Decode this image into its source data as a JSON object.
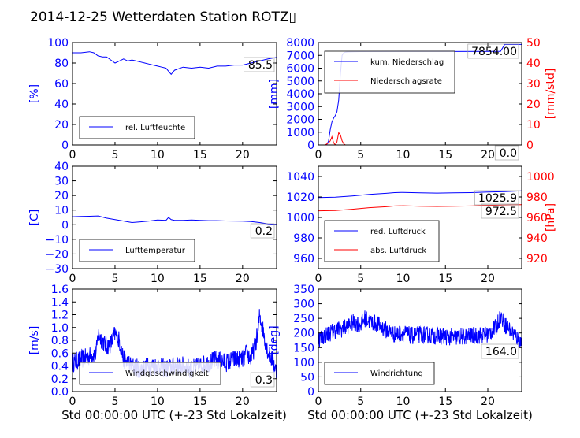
{
  "title": "2014-12-25 Wetterdaten Station ROTZ▯",
  "xlabel": "Std 00:00:00 UTC (+-23 Std Lokalzeit)",
  "colors": {
    "left_axis": "#0000ff",
    "right_axis": "#ff0000",
    "line_blue": "#0000ff",
    "line_red": "#ff0000"
  },
  "chart_data": [
    {
      "id": "humidity",
      "type": "line",
      "x": [
        0,
        1,
        2,
        2.5,
        3,
        3.5,
        4,
        4.5,
        5,
        5.5,
        6,
        6.5,
        7,
        7.5,
        8,
        8.5,
        9,
        9.5,
        10,
        10.5,
        11,
        11.3,
        11.6,
        12,
        13,
        14,
        15,
        16,
        17,
        18,
        19,
        20,
        21,
        22,
        23,
        24
      ],
      "series": [
        {
          "name": "rel. Luftfeuchte",
          "color": "#0000ff",
          "values": [
            90,
            90,
            91,
            90,
            87,
            86,
            86,
            83,
            80,
            82,
            84,
            82,
            83,
            82,
            81,
            80,
            79,
            78,
            77,
            76,
            75,
            72,
            69,
            73,
            76,
            75,
            76,
            75,
            77,
            77,
            78,
            78,
            80,
            82,
            84,
            85.5
          ]
        }
      ],
      "ylabel": "[%]",
      "xlim": [
        0,
        24
      ],
      "ylim": [
        0,
        100
      ],
      "yticks": [
        "0",
        "20",
        "40",
        "60",
        "80",
        "100"
      ],
      "annotation": "85.5",
      "legend": "lower-left"
    },
    {
      "id": "precip",
      "type": "line",
      "x": [
        0,
        0.8,
        1.0,
        1.2,
        1.4,
        1.6,
        1.8,
        2.0,
        2.2,
        2.4,
        2.6,
        2.8,
        3.0,
        3.2,
        3.5,
        4,
        5,
        10,
        15,
        20,
        21.5,
        22,
        22.5,
        24
      ],
      "series": [
        {
          "name": "kum. Niederschlag",
          "color": "#0000ff",
          "axis": "left",
          "values": [
            0,
            0,
            50,
            300,
            1200,
            1800,
            2100,
            2300,
            2600,
            3500,
            5500,
            7000,
            7200,
            7250,
            7270,
            7280,
            7290,
            7300,
            7300,
            7310,
            7310,
            7850,
            7854,
            7854
          ]
        },
        {
          "name": "Niederschlagsrate",
          "color": "#ff0000",
          "axis": "right",
          "values": [
            0,
            0,
            0.5,
            1,
            2,
            4,
            1,
            0,
            1.5,
            6,
            5,
            2,
            0.5,
            0,
            0,
            0,
            0,
            0,
            0,
            0,
            0,
            0,
            0,
            0
          ]
        }
      ],
      "ylabel": "[mm]",
      "ylabel_right": "[mm/std]",
      "xlim": [
        0,
        24
      ],
      "ylim": [
        0,
        8000
      ],
      "ylim_right": [
        0,
        50
      ],
      "yticks": [
        "0",
        "1000",
        "2000",
        "3000",
        "4000",
        "5000",
        "6000",
        "7000",
        "8000"
      ],
      "yticks_right": [
        "0",
        "10",
        "20",
        "30",
        "40",
        "50"
      ],
      "annotations": [
        "7854.00",
        "0.0"
      ],
      "legend": "top-left"
    },
    {
      "id": "temperature",
      "type": "line",
      "x": [
        0,
        1,
        2,
        3,
        4,
        5,
        6,
        7,
        8,
        9,
        10,
        11,
        11.3,
        11.6,
        12,
        13,
        14,
        15,
        16,
        17,
        18,
        19,
        20,
        21,
        22,
        23,
        24
      ],
      "series": [
        {
          "name": "Lufttemperatur",
          "color": "#0000ff",
          "values": [
            5.5,
            5.7,
            5.8,
            6,
            4.5,
            3.5,
            2.5,
            1.5,
            2,
            2.5,
            3.2,
            3,
            5,
            3.5,
            3,
            3,
            3.2,
            3,
            2.8,
            2.8,
            2.6,
            2.5,
            2.4,
            2.2,
            1.5,
            0.6,
            0.2
          ]
        }
      ],
      "ylabel": "[C]",
      "xlim": [
        0,
        24
      ],
      "ylim": [
        -30,
        40
      ],
      "yticks": [
        "−30",
        "−20",
        "−10",
        "0",
        "10",
        "20",
        "30",
        "40"
      ],
      "annotation": "0.2",
      "legend": "lower-left"
    },
    {
      "id": "pressure",
      "type": "line",
      "x": [
        0,
        2,
        4,
        6,
        8,
        9,
        10,
        12,
        14,
        16,
        18,
        20,
        22,
        24
      ],
      "series": [
        {
          "name": "red. Luftdruck",
          "color": "#0000ff",
          "axis": "left",
          "values": [
            1019.5,
            1019.8,
            1021,
            1022.5,
            1023.5,
            1024.2,
            1024.5,
            1024,
            1023.8,
            1024,
            1024.2,
            1024.8,
            1025.2,
            1025.9
          ]
        },
        {
          "name": "abs. Luftdruck",
          "color": "#ff0000",
          "axis": "right",
          "values": [
            966.5,
            966.8,
            968,
            969.5,
            970.5,
            971.2,
            971.5,
            971,
            970.8,
            971,
            971.2,
            971.8,
            972.2,
            972.5
          ]
        }
      ],
      "ylabel_right": "[hPa]",
      "xlim": [
        0,
        24
      ],
      "ylim": [
        950,
        1050
      ],
      "ylim_right": [
        910,
        1010
      ],
      "yticks": [
        "960",
        "980",
        "1000",
        "1020",
        "1040"
      ],
      "yticks_right": [
        "920",
        "940",
        "960",
        "980",
        "1000"
      ],
      "annotations": [
        "1025.9",
        "972.5"
      ],
      "legend": "lower-left"
    },
    {
      "id": "wind_speed",
      "type": "line",
      "series": [
        {
          "name": "Windgeschwindigkeit",
          "color": "#0000ff",
          "profile": [
            [
              0,
              0.45
            ],
            [
              1,
              0.5
            ],
            [
              2,
              0.55
            ],
            [
              2.8,
              0.6
            ],
            [
              3,
              0.9
            ],
            [
              3.5,
              0.8
            ],
            [
              4,
              0.7
            ],
            [
              4.5,
              0.75
            ],
            [
              5,
              0.9
            ],
            [
              5.5,
              0.8
            ],
            [
              6,
              0.5
            ],
            [
              7,
              0.4
            ],
            [
              8,
              0.35
            ],
            [
              9,
              0.4
            ],
            [
              10,
              0.4
            ],
            [
              11,
              0.35
            ],
            [
              12,
              0.4
            ],
            [
              13,
              0.4
            ],
            [
              14,
              0.35
            ],
            [
              15,
              0.4
            ],
            [
              16,
              0.45
            ],
            [
              17,
              0.5
            ],
            [
              18,
              0.45
            ],
            [
              19,
              0.5
            ],
            [
              20,
              0.5
            ],
            [
              20.5,
              0.6
            ],
            [
              21,
              0.5
            ],
            [
              21.8,
              0.9
            ],
            [
              22,
              1.2
            ],
            [
              22.5,
              0.9
            ],
            [
              23,
              0.6
            ],
            [
              23.5,
              0.5
            ],
            [
              24,
              0.3
            ]
          ],
          "noise": 0.15,
          "last": 0.3
        }
      ],
      "ylabel": "[m/s]",
      "xlim": [
        0,
        24
      ],
      "ylim": [
        0,
        1.6
      ],
      "yticks": [
        "0.0",
        "0.2",
        "0.4",
        "0.6",
        "0.8",
        "1.0",
        "1.2",
        "1.4",
        "1.6"
      ],
      "annotation": "0.3",
      "legend": "lower-left"
    },
    {
      "id": "wind_direction",
      "type": "line",
      "series": [
        {
          "name": "Windrichtung",
          "color": "#0000ff",
          "profile": [
            [
              0,
              180
            ],
            [
              1,
              195
            ],
            [
              2,
              210
            ],
            [
              3,
              215
            ],
            [
              4,
              235
            ],
            [
              5,
              230
            ],
            [
              5.5,
              250
            ],
            [
              6,
              240
            ],
            [
              7,
              230
            ],
            [
              8,
              210
            ],
            [
              9,
              195
            ],
            [
              10,
              200
            ],
            [
              11,
              190
            ],
            [
              12,
              195
            ],
            [
              14,
              190
            ],
            [
              16,
              185
            ],
            [
              18,
              190
            ],
            [
              20,
              195
            ],
            [
              21,
              220
            ],
            [
              21.5,
              260
            ],
            [
              22,
              230
            ],
            [
              23,
              200
            ],
            [
              24,
              164
            ]
          ],
          "noise": 30,
          "last": 164
        }
      ],
      "ylabel": "[deg]",
      "xlim": [
        0,
        24
      ],
      "ylim": [
        0,
        350
      ],
      "yticks": [
        "0",
        "50",
        "100",
        "150",
        "200",
        "250",
        "300",
        "350"
      ],
      "annotation": "164.0",
      "legend": "lower-left"
    }
  ],
  "xticks": [
    "0",
    "5",
    "10",
    "15",
    "20"
  ]
}
